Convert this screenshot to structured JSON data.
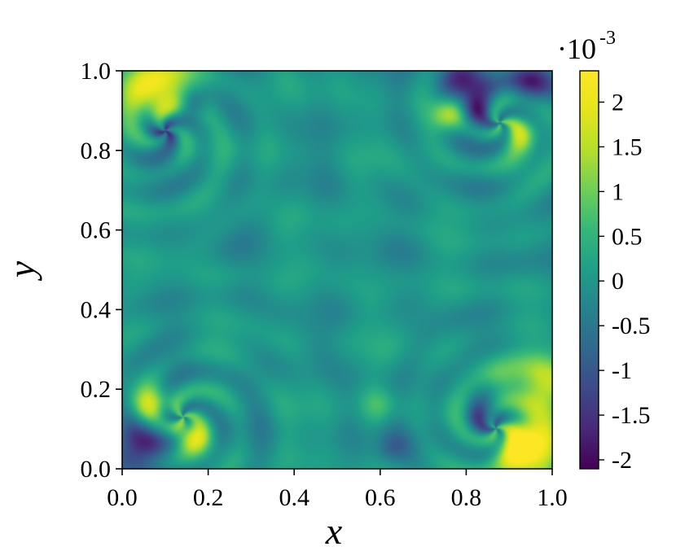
{
  "chart_data": {
    "type": "heatmap",
    "title": "",
    "xlabel": "x",
    "ylabel": "y",
    "xlim": [
      0.0,
      1.0
    ],
    "ylim": [
      0.0,
      1.0
    ],
    "x_ticks": [
      0.0,
      0.2,
      0.4,
      0.6,
      0.8,
      1.0
    ],
    "y_ticks": [
      0.0,
      0.2,
      0.4,
      0.6,
      0.8,
      1.0
    ],
    "x_tick_labels": [
      "0.0",
      "0.2",
      "0.4",
      "0.6",
      "0.8",
      "1.0"
    ],
    "y_tick_labels": [
      "0.0",
      "0.2",
      "0.4",
      "0.6",
      "0.8",
      "1.0"
    ],
    "grid": false,
    "colormap": "viridis",
    "colorbar": {
      "multiplier_text": "·10",
      "multiplier_exponent": "-3",
      "range": [
        -2.1,
        2.35
      ],
      "ticks": [
        2,
        1.5,
        1,
        0.5,
        0,
        -0.5,
        -1,
        -1.5,
        -2
      ],
      "tick_labels": [
        "2",
        "1.5",
        "1",
        "0.5",
        "0",
        "-0.5",
        "-1",
        "-1.5",
        "-2"
      ]
    },
    "field_description_samples": [
      {
        "x": 0.08,
        "y": 0.95,
        "value": 2.1
      },
      {
        "x": 0.93,
        "y": 0.05,
        "value": 2.3
      },
      {
        "x": 0.98,
        "y": 0.2,
        "value": 2.0
      },
      {
        "x": 0.8,
        "y": 0.97,
        "value": -2.0
      },
      {
        "x": 0.05,
        "y": 0.05,
        "value": -1.9
      },
      {
        "x": 0.16,
        "y": 0.08,
        "value": 2.0
      },
      {
        "x": 0.76,
        "y": 0.89,
        "value": 1.7
      },
      {
        "x": 0.5,
        "y": 0.5,
        "value": 0.0
      }
    ]
  }
}
